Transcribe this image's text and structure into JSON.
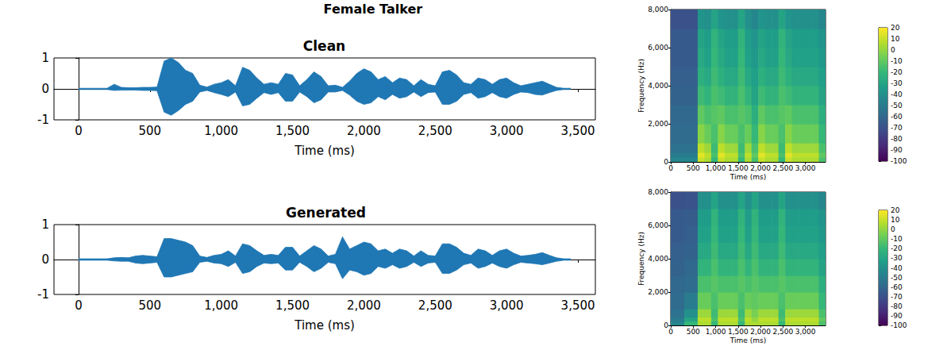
{
  "title": "Female Talker",
  "chart_data": [
    {
      "type": "area",
      "title": "Clean",
      "x_label": "Time (ms)",
      "color": "#1f77b4",
      "xlim": [
        -172,
        3622
      ],
      "xticks": [
        0,
        500,
        1000,
        1500,
        2000,
        2500,
        3000,
        3500
      ],
      "ylim": [
        -1,
        1
      ],
      "yticks": [
        -1,
        0,
        1
      ],
      "x": [
        0,
        50,
        100,
        150,
        200,
        250,
        300,
        350,
        400,
        450,
        500,
        550,
        600,
        650,
        700,
        750,
        800,
        850,
        900,
        950,
        1000,
        1050,
        1100,
        1150,
        1200,
        1250,
        1300,
        1350,
        1400,
        1450,
        1500,
        1550,
        1600,
        1650,
        1700,
        1750,
        1800,
        1850,
        1900,
        1950,
        2000,
        2050,
        2100,
        2150,
        2200,
        2250,
        2300,
        2350,
        2400,
        2450,
        2500,
        2550,
        2600,
        2650,
        2700,
        2750,
        2800,
        2850,
        2900,
        2950,
        3000,
        3050,
        3100,
        3150,
        3200,
        3250,
        3300,
        3350,
        3400,
        3450
      ],
      "upper": [
        0.02,
        0.02,
        0.02,
        0.02,
        0.02,
        0.15,
        0.05,
        0.04,
        0.04,
        0.05,
        0.05,
        0.06,
        0.9,
        1.0,
        0.85,
        0.6,
        0.5,
        0.12,
        0.06,
        0.15,
        0.2,
        0.3,
        0.1,
        0.7,
        0.6,
        0.35,
        0.15,
        0.2,
        0.15,
        0.5,
        0.45,
        0.1,
        0.3,
        0.55,
        0.4,
        0.1,
        0.12,
        0.05,
        0.25,
        0.5,
        0.65,
        0.55,
        0.3,
        0.4,
        0.2,
        0.35,
        0.3,
        0.1,
        0.3,
        0.15,
        0.1,
        0.55,
        0.6,
        0.45,
        0.2,
        0.15,
        0.35,
        0.3,
        0.15,
        0.3,
        0.35,
        0.2,
        0.1,
        0.15,
        0.2,
        0.25,
        0.15,
        0.05,
        0.02,
        0.02
      ],
      "lower": [
        -0.02,
        -0.02,
        -0.02,
        -0.02,
        -0.02,
        -0.05,
        -0.04,
        -0.04,
        -0.04,
        -0.05,
        -0.05,
        -0.06,
        -0.75,
        -0.85,
        -0.7,
        -0.5,
        -0.4,
        -0.1,
        -0.05,
        -0.12,
        -0.18,
        -0.25,
        -0.1,
        -0.55,
        -0.5,
        -0.3,
        -0.12,
        -0.18,
        -0.12,
        -0.4,
        -0.4,
        -0.1,
        -0.25,
        -0.45,
        -0.35,
        -0.1,
        -0.1,
        -0.05,
        -0.2,
        -0.4,
        -0.5,
        -0.45,
        -0.25,
        -0.35,
        -0.18,
        -0.3,
        -0.25,
        -0.1,
        -0.25,
        -0.12,
        -0.1,
        -0.5,
        -0.5,
        -0.4,
        -0.18,
        -0.12,
        -0.3,
        -0.25,
        -0.12,
        -0.25,
        -0.3,
        -0.18,
        -0.1,
        -0.12,
        -0.18,
        -0.2,
        -0.12,
        -0.05,
        -0.02,
        -0.02
      ]
    },
    {
      "type": "heatmap",
      "x_label": "Time (ms)",
      "y_label": "Frequency (Hz)",
      "xlim": [
        0,
        3450
      ],
      "xticks": [
        0,
        500,
        1000,
        1500,
        2000,
        2500,
        3000
      ],
      "ylim": [
        0,
        8000
      ],
      "yticks": [
        0,
        2000,
        4000,
        6000,
        8000
      ],
      "x_bins": [
        0,
        150,
        300,
        450,
        600,
        750,
        900,
        1050,
        1200,
        1350,
        1500,
        1650,
        1800,
        1950,
        2100,
        2250,
        2400,
        2550,
        2700,
        2850,
        3000,
        3150,
        3300,
        3450
      ],
      "y_bins": [
        0,
        250,
        500,
        1000,
        2000,
        3000,
        4000,
        5000,
        6000,
        7000,
        8000
      ],
      "cells": [
        [
          -45,
          -45,
          -45,
          -45,
          10,
          5,
          -20,
          10,
          5,
          5,
          -20,
          5,
          -15,
          10,
          5,
          5,
          -20,
          10,
          5,
          5,
          5,
          5,
          -15
        ],
        [
          -50,
          -50,
          -50,
          -50,
          15,
          8,
          -15,
          15,
          8,
          8,
          -15,
          8,
          -10,
          15,
          8,
          8,
          -15,
          15,
          8,
          8,
          8,
          8,
          -10
        ],
        [
          -55,
          -55,
          -55,
          -55,
          8,
          2,
          -18,
          8,
          2,
          2,
          -18,
          2,
          -15,
          8,
          2,
          2,
          -18,
          8,
          2,
          2,
          2,
          2,
          -15
        ],
        [
          -58,
          -58,
          -58,
          -58,
          -2,
          -8,
          -15,
          -2,
          -8,
          -8,
          -15,
          -8,
          -20,
          -2,
          -8,
          -8,
          -15,
          -2,
          -8,
          -8,
          -8,
          -8,
          -20
        ],
        [
          -60,
          -60,
          -60,
          -60,
          -10,
          -15,
          -12,
          -10,
          -15,
          -15,
          -12,
          -15,
          -25,
          -10,
          -15,
          -15,
          -12,
          -10,
          -15,
          -15,
          -15,
          -15,
          -25
        ],
        [
          -62,
          -62,
          -62,
          -62,
          -18,
          -22,
          -15,
          -18,
          -22,
          -22,
          -15,
          -22,
          -30,
          -18,
          -22,
          -22,
          -15,
          -18,
          -22,
          -22,
          -22,
          -22,
          -30
        ],
        [
          -64,
          -64,
          -64,
          -64,
          -24,
          -28,
          -18,
          -24,
          -28,
          -28,
          -18,
          -28,
          -33,
          -24,
          -28,
          -28,
          -18,
          -24,
          -28,
          -28,
          -28,
          -28,
          -33
        ],
        [
          -66,
          -66,
          -66,
          -66,
          -28,
          -32,
          -20,
          -28,
          -32,
          -32,
          -20,
          -32,
          -36,
          -28,
          -32,
          -32,
          -20,
          -28,
          -32,
          -32,
          -32,
          -32,
          -36
        ],
        [
          -66,
          -66,
          -66,
          -66,
          -30,
          -34,
          -22,
          -30,
          -34,
          -34,
          -22,
          -34,
          -38,
          -30,
          -34,
          -34,
          -22,
          -30,
          -34,
          -34,
          -34,
          -34,
          -38
        ],
        [
          -70,
          -70,
          -70,
          -70,
          -38,
          -40,
          -30,
          -38,
          -40,
          -40,
          -30,
          -40,
          -45,
          -38,
          -40,
          -40,
          -30,
          -38,
          -40,
          -40,
          -40,
          -40,
          -45
        ]
      ],
      "colorbar": {
        "range": [
          -100,
          20
        ],
        "ticks": [
          -100,
          -90,
          -80,
          -70,
          -60,
          -50,
          -40,
          -30,
          -20,
          -10,
          0,
          10,
          20
        ]
      }
    },
    {
      "type": "area",
      "title": "Generated",
      "x_label": "Time (ms)",
      "color": "#1f77b4",
      "xlim": [
        -172,
        3622
      ],
      "xticks": [
        0,
        500,
        1000,
        1500,
        2000,
        2500,
        3000,
        3500
      ],
      "ylim": [
        -1,
        1
      ],
      "yticks": [
        -1,
        0,
        1
      ],
      "x": [
        0,
        50,
        100,
        150,
        200,
        250,
        300,
        350,
        400,
        450,
        500,
        550,
        600,
        650,
        700,
        750,
        800,
        850,
        900,
        950,
        1000,
        1050,
        1100,
        1150,
        1200,
        1250,
        1300,
        1350,
        1400,
        1450,
        1500,
        1550,
        1600,
        1650,
        1700,
        1750,
        1800,
        1850,
        1900,
        1950,
        2000,
        2050,
        2100,
        2150,
        2200,
        2250,
        2300,
        2350,
        2400,
        2450,
        2500,
        2550,
        2600,
        2650,
        2700,
        2750,
        2800,
        2850,
        2900,
        2950,
        3000,
        3050,
        3100,
        3150,
        3200,
        3250,
        3300,
        3350,
        3400,
        3450
      ],
      "upper": [
        0.02,
        0.02,
        0.02,
        0.02,
        0.02,
        0.05,
        0.06,
        0.05,
        0.1,
        0.12,
        0.1,
        0.08,
        0.6,
        0.6,
        0.55,
        0.5,
        0.4,
        0.1,
        0.06,
        0.12,
        0.15,
        0.25,
        0.1,
        0.45,
        0.4,
        0.25,
        0.12,
        0.15,
        0.12,
        0.35,
        0.35,
        0.1,
        0.25,
        0.4,
        0.3,
        0.1,
        0.15,
        0.65,
        0.3,
        0.4,
        0.5,
        0.45,
        0.25,
        0.3,
        0.18,
        0.3,
        0.25,
        0.1,
        0.25,
        0.12,
        0.1,
        0.45,
        0.45,
        0.35,
        0.18,
        0.12,
        0.3,
        0.25,
        0.12,
        0.25,
        0.3,
        0.18,
        0.1,
        0.12,
        0.15,
        0.2,
        0.12,
        0.05,
        0.02,
        0.02
      ],
      "lower": [
        -0.02,
        -0.02,
        -0.02,
        -0.02,
        -0.02,
        -0.04,
        -0.05,
        -0.05,
        -0.1,
        -0.12,
        -0.1,
        -0.08,
        -0.5,
        -0.5,
        -0.45,
        -0.4,
        -0.35,
        -0.08,
        -0.05,
        -0.1,
        -0.12,
        -0.2,
        -0.08,
        -0.4,
        -0.35,
        -0.2,
        -0.1,
        -0.12,
        -0.1,
        -0.3,
        -0.3,
        -0.08,
        -0.2,
        -0.35,
        -0.25,
        -0.08,
        -0.12,
        -0.55,
        -0.3,
        -0.35,
        -0.45,
        -0.4,
        -0.2,
        -0.25,
        -0.15,
        -0.25,
        -0.2,
        -0.08,
        -0.2,
        -0.1,
        -0.08,
        -0.4,
        -0.4,
        -0.3,
        -0.15,
        -0.1,
        -0.25,
        -0.2,
        -0.1,
        -0.2,
        -0.25,
        -0.15,
        -0.08,
        -0.1,
        -0.12,
        -0.15,
        -0.1,
        -0.05,
        -0.02,
        -0.02
      ]
    },
    {
      "type": "heatmap",
      "x_label": "Time (ms)",
      "y_label": "Frequency (Hz)",
      "xlim": [
        0,
        3450
      ],
      "xticks": [
        0,
        500,
        1000,
        1500,
        2000,
        2500,
        3000
      ],
      "ylim": [
        0,
        8000
      ],
      "yticks": [
        0,
        2000,
        4000,
        6000,
        8000
      ],
      "x_bins": [
        0,
        150,
        300,
        450,
        600,
        750,
        900,
        1050,
        1200,
        1350,
        1500,
        1650,
        1800,
        1950,
        2100,
        2250,
        2400,
        2550,
        2700,
        2850,
        3000,
        3150,
        3300,
        3450
      ],
      "y_bins": [
        0,
        250,
        500,
        1000,
        2000,
        3000,
        4000,
        5000,
        6000,
        7000,
        8000
      ],
      "cells": [
        [
          -45,
          -45,
          -20,
          -20,
          5,
          5,
          -20,
          5,
          5,
          5,
          -20,
          5,
          5,
          5,
          5,
          5,
          -20,
          5,
          5,
          5,
          5,
          5,
          -15
        ],
        [
          -50,
          -50,
          -30,
          -30,
          8,
          8,
          -15,
          8,
          8,
          8,
          -15,
          8,
          0,
          8,
          8,
          8,
          -15,
          8,
          8,
          8,
          8,
          8,
          -10
        ],
        [
          -55,
          -55,
          -40,
          -40,
          2,
          2,
          -18,
          2,
          2,
          2,
          -18,
          2,
          -5,
          2,
          2,
          2,
          -18,
          2,
          2,
          2,
          2,
          2,
          -15
        ],
        [
          -58,
          -58,
          -50,
          -50,
          -8,
          -8,
          -15,
          -8,
          -8,
          -8,
          -15,
          -8,
          -10,
          -8,
          -8,
          -8,
          -15,
          -8,
          -8,
          -8,
          -8,
          -8,
          -20
        ],
        [
          -60,
          -60,
          -58,
          -58,
          -15,
          -15,
          -12,
          -15,
          -15,
          -15,
          -12,
          -15,
          -12,
          -15,
          -15,
          -15,
          -12,
          -15,
          -15,
          -15,
          -15,
          -15,
          -25
        ],
        [
          -62,
          -62,
          -60,
          -60,
          -22,
          -22,
          -15,
          -22,
          -22,
          -22,
          -15,
          -22,
          -15,
          -22,
          -22,
          -22,
          -15,
          -22,
          -22,
          -22,
          -22,
          -22,
          -30
        ],
        [
          -64,
          -64,
          -62,
          -62,
          -28,
          -28,
          -18,
          -28,
          -28,
          -28,
          -18,
          -28,
          -18,
          -28,
          -28,
          -28,
          -18,
          -28,
          -28,
          -28,
          -28,
          -28,
          -33
        ],
        [
          -66,
          -66,
          -64,
          -64,
          -32,
          -32,
          -20,
          -32,
          -32,
          -32,
          -20,
          -32,
          -20,
          -32,
          -32,
          -32,
          -20,
          -32,
          -32,
          -32,
          -32,
          -32,
          -36
        ],
        [
          -66,
          -66,
          -65,
          -65,
          -34,
          -34,
          -22,
          -34,
          -34,
          -34,
          -22,
          -34,
          -22,
          -34,
          -34,
          -34,
          -22,
          -34,
          -34,
          -34,
          -34,
          -34,
          -38
        ],
        [
          -70,
          -70,
          -69,
          -69,
          -40,
          -40,
          -30,
          -40,
          -40,
          -40,
          -30,
          -40,
          -30,
          -40,
          -40,
          -40,
          -30,
          -40,
          -40,
          -40,
          -40,
          -40,
          -45
        ]
      ],
      "colorbar": {
        "range": [
          -100,
          20
        ],
        "ticks": [
          -100,
          -90,
          -80,
          -70,
          -60,
          -50,
          -40,
          -30,
          -20,
          -10,
          0,
          10,
          20
        ]
      }
    }
  ]
}
